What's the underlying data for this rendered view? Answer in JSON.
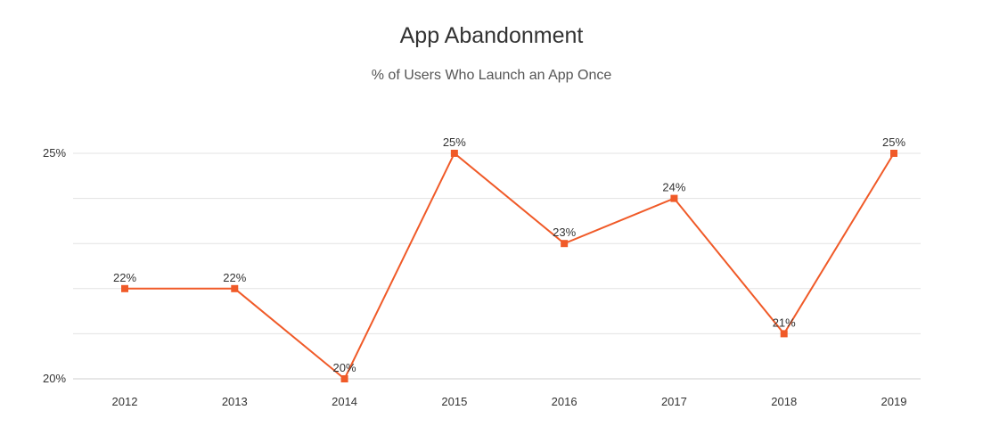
{
  "chart_data": {
    "type": "line",
    "title": "App Abandonment",
    "subtitle": "% of Users Who Launch an App Once",
    "categories": [
      "2012",
      "2013",
      "2014",
      "2015",
      "2016",
      "2017",
      "2018",
      "2019"
    ],
    "values": [
      22,
      22,
      20,
      25,
      23,
      24,
      21,
      25
    ],
    "data_labels": [
      "22%",
      "22%",
      "20%",
      "25%",
      "23%",
      "24%",
      "21%",
      "25%"
    ],
    "ylim": [
      20,
      25
    ],
    "yticks": [
      20,
      25
    ],
    "ytick_labels": [
      "20%",
      "25%"
    ],
    "grid": true,
    "color": "#F05A28"
  }
}
